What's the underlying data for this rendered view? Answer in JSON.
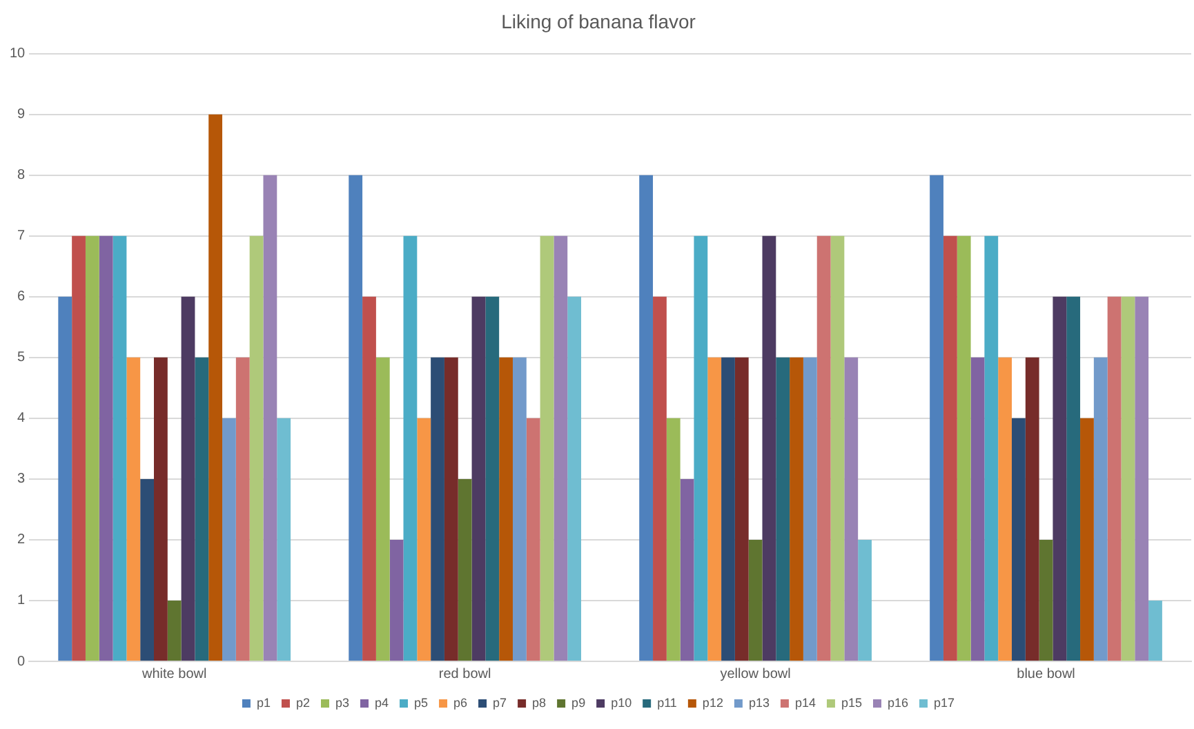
{
  "chart_data": {
    "type": "bar",
    "title": "Liking of banana flavor",
    "categories": [
      "white bowl",
      "red bowl",
      "yellow bowl",
      "blue bowl"
    ],
    "series": [
      {
        "name": "p1",
        "color": "#4f81bd",
        "values": [
          6,
          8,
          8,
          8
        ]
      },
      {
        "name": "p2",
        "color": "#c0504d",
        "values": [
          7,
          6,
          6,
          7
        ]
      },
      {
        "name": "p3",
        "color": "#9bbb59",
        "values": [
          7,
          5,
          4,
          7
        ]
      },
      {
        "name": "p4",
        "color": "#8064a2",
        "values": [
          7,
          2,
          3,
          5
        ]
      },
      {
        "name": "p5",
        "color": "#4bacc6",
        "values": [
          7,
          7,
          7,
          7
        ]
      },
      {
        "name": "p6",
        "color": "#f79646",
        "values": [
          5,
          4,
          5,
          5
        ]
      },
      {
        "name": "p7",
        "color": "#2c4d75",
        "values": [
          3,
          5,
          5,
          4
        ]
      },
      {
        "name": "p8",
        "color": "#772c2a",
        "values": [
          5,
          5,
          5,
          5
        ]
      },
      {
        "name": "p9",
        "color": "#5f7530",
        "values": [
          1,
          3,
          2,
          2
        ]
      },
      {
        "name": "p10",
        "color": "#4d3b62",
        "values": [
          6,
          6,
          7,
          6
        ]
      },
      {
        "name": "p11",
        "color": "#276a7c",
        "values": [
          5,
          6,
          5,
          6
        ]
      },
      {
        "name": "p12",
        "color": "#b65708",
        "values": [
          9,
          5,
          5,
          4
        ]
      },
      {
        "name": "p13",
        "color": "#729aca",
        "values": [
          4,
          5,
          5,
          5
        ]
      },
      {
        "name": "p14",
        "color": "#cd7371",
        "values": [
          5,
          4,
          7,
          6
        ]
      },
      {
        "name": "p15",
        "color": "#afc97a",
        "values": [
          7,
          7,
          7,
          6
        ]
      },
      {
        "name": "p16",
        "color": "#9983b5",
        "values": [
          8,
          7,
          5,
          6
        ]
      },
      {
        "name": "p17",
        "color": "#6fbdd1",
        "values": [
          4,
          6,
          2,
          1
        ]
      }
    ],
    "ylim": [
      0,
      10
    ],
    "yticks": [
      0,
      1,
      2,
      3,
      4,
      5,
      6,
      7,
      8,
      9,
      10
    ],
    "grid": "y",
    "legend": "bottom"
  }
}
